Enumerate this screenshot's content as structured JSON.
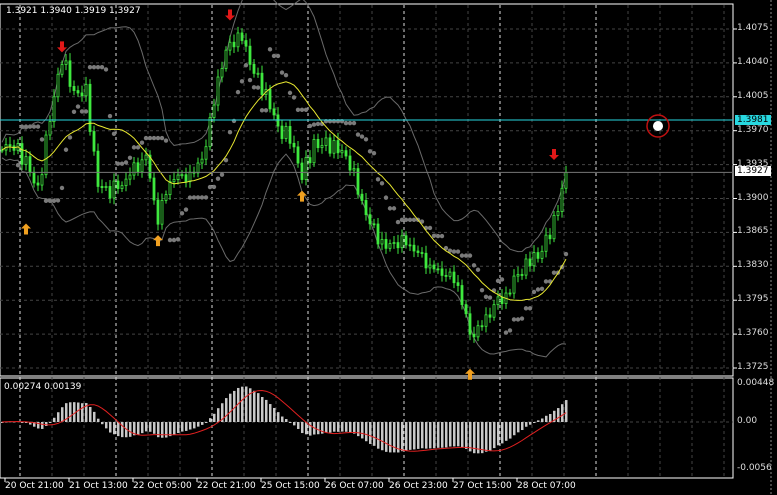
{
  "header": {
    "ohlc": "1.3921 1.3940 1.3919 1.3927"
  },
  "macd_label": "0.00274 0.00139",
  "current_price_label": "1.3927",
  "hline_label": "1.3981",
  "colors": {
    "candle": "#3fe83f",
    "ma": "#e8e830",
    "bands": "#6a6a6a",
    "sar": "#7a7a7a",
    "hline": "#27d8e0",
    "macd_hist": "#c8c8c8",
    "macd_signal": "#e02020",
    "buy_arrow": "#f0a020",
    "sell_arrow": "#e01818"
  },
  "chart_data": [
    {
      "type": "candlestick",
      "price_ticks": [
        "1.4075",
        "1.4040",
        "1.4005",
        "1.3970",
        "1.3935",
        "1.3900",
        "1.3865",
        "1.3830",
        "1.3795",
        "1.3760",
        "1.3725"
      ],
      "ylim": [
        1.371,
        1.4115
      ],
      "time_ticks": [
        "20 Oct 21:00",
        "21 Oct 13:00",
        "22 Oct 05:00",
        "22 Oct 21:00",
        "25 Oct 15:00",
        "26 Oct 07:00",
        "26 Oct 23:00",
        "27 Oct 15:00",
        "28 Oct 07:00"
      ],
      "close_anchors": [
        1.395,
        1.395,
        1.394,
        1.3912,
        1.3985,
        1.4043,
        1.4005,
        1.401,
        1.3918,
        1.3911,
        1.391,
        1.3925,
        1.3945,
        1.3885,
        1.392,
        1.3915,
        1.3922,
        1.396,
        1.403,
        1.4058,
        1.406,
        1.403,
        1.4013,
        1.3975,
        1.396,
        1.392,
        1.3955,
        1.396,
        1.3955,
        1.3935,
        1.389,
        1.3865,
        1.3855,
        1.386,
        1.3848,
        1.3832,
        1.3828,
        1.383,
        1.3812,
        1.3752,
        1.3765,
        1.3795,
        1.3805,
        1.382,
        1.383,
        1.3845,
        1.388,
        1.3927
      ],
      "horizontal_line": 1.3981,
      "current_price": 1.3927,
      "signals": [
        {
          "type": "buy",
          "anchor": 2,
          "price": 1.3868
        },
        {
          "type": "sell",
          "anchor": 5,
          "price": 1.4057
        },
        {
          "type": "buy",
          "anchor": 13,
          "price": 1.3856
        },
        {
          "type": "sell",
          "anchor": 19,
          "price": 1.409
        },
        {
          "type": "buy",
          "anchor": 25,
          "price": 1.3902
        },
        {
          "type": "buy",
          "anchor": 39,
          "price": 1.3718
        },
        {
          "type": "sell",
          "anchor": 46,
          "price": 1.3946
        }
      ]
    },
    {
      "type": "bar",
      "indicator_values": [
        0.00274,
        0.00139
      ],
      "y_ticks": [
        "0.00448",
        "0.00",
        "-0.0056"
      ],
      "ylim": [
        -0.0056,
        0.00448
      ]
    }
  ]
}
